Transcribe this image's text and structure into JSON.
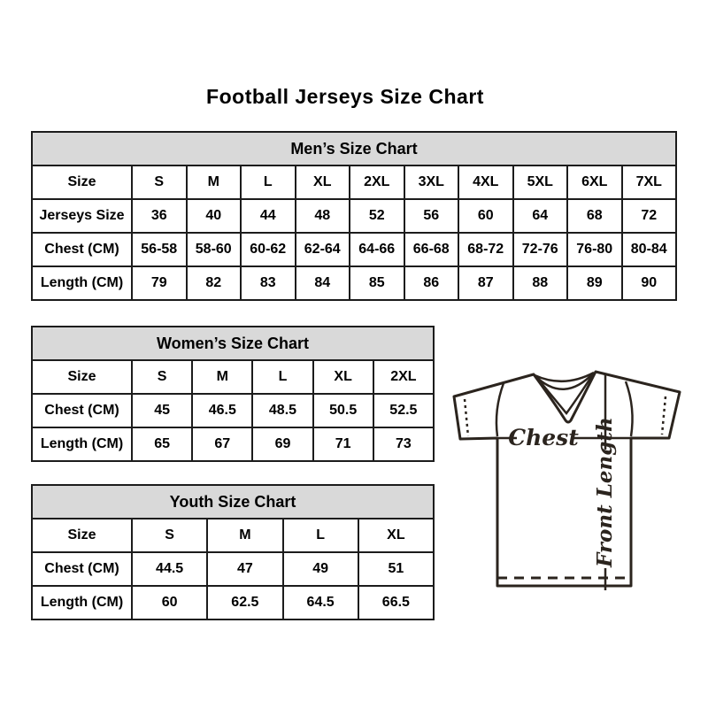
{
  "title": "Football Jerseys Size Chart",
  "colors": {
    "header_bg": "#d9d9d9",
    "table_border": "#1c1c1c",
    "jersey_line": "#2b241e"
  },
  "tables": [
    {
      "id": "mens",
      "title": "Men’s Size Chart",
      "rows": [
        [
          "Size",
          "S",
          "M",
          "L",
          "XL",
          "2XL",
          "3XL",
          "4XL",
          "5XL",
          "6XL",
          "7XL"
        ],
        [
          "Jerseys Size",
          "36",
          "40",
          "44",
          "48",
          "52",
          "56",
          "60",
          "64",
          "68",
          "72"
        ],
        [
          "Chest (CM)",
          "56-58",
          "58-60",
          "60-62",
          "62-64",
          "64-66",
          "66-68",
          "68-72",
          "72-76",
          "76-80",
          "80-84"
        ],
        [
          "Length (CM)",
          "79",
          "82",
          "83",
          "84",
          "85",
          "86",
          "87",
          "88",
          "89",
          "90"
        ]
      ]
    },
    {
      "id": "womens",
      "title": "Women’s Size Chart",
      "rows": [
        [
          "Size",
          "S",
          "M",
          "L",
          "XL",
          "2XL"
        ],
        [
          "Chest (CM)",
          "45",
          "46.5",
          "48.5",
          "50.5",
          "52.5"
        ],
        [
          "Length (CM)",
          "65",
          "67",
          "69",
          "71",
          "73"
        ]
      ]
    },
    {
      "id": "youth",
      "title": "Youth Size Chart",
      "rows": [
        [
          "Size",
          "S",
          "M",
          "L",
          "XL"
        ],
        [
          "Chest (CM)",
          "44.5",
          "47",
          "49",
          "51"
        ],
        [
          "Length (CM)",
          "60",
          "62.5",
          "64.5",
          "66.5"
        ]
      ]
    }
  ],
  "diagram": {
    "chest_label": "Chest",
    "front_length_label": "Front Length"
  }
}
